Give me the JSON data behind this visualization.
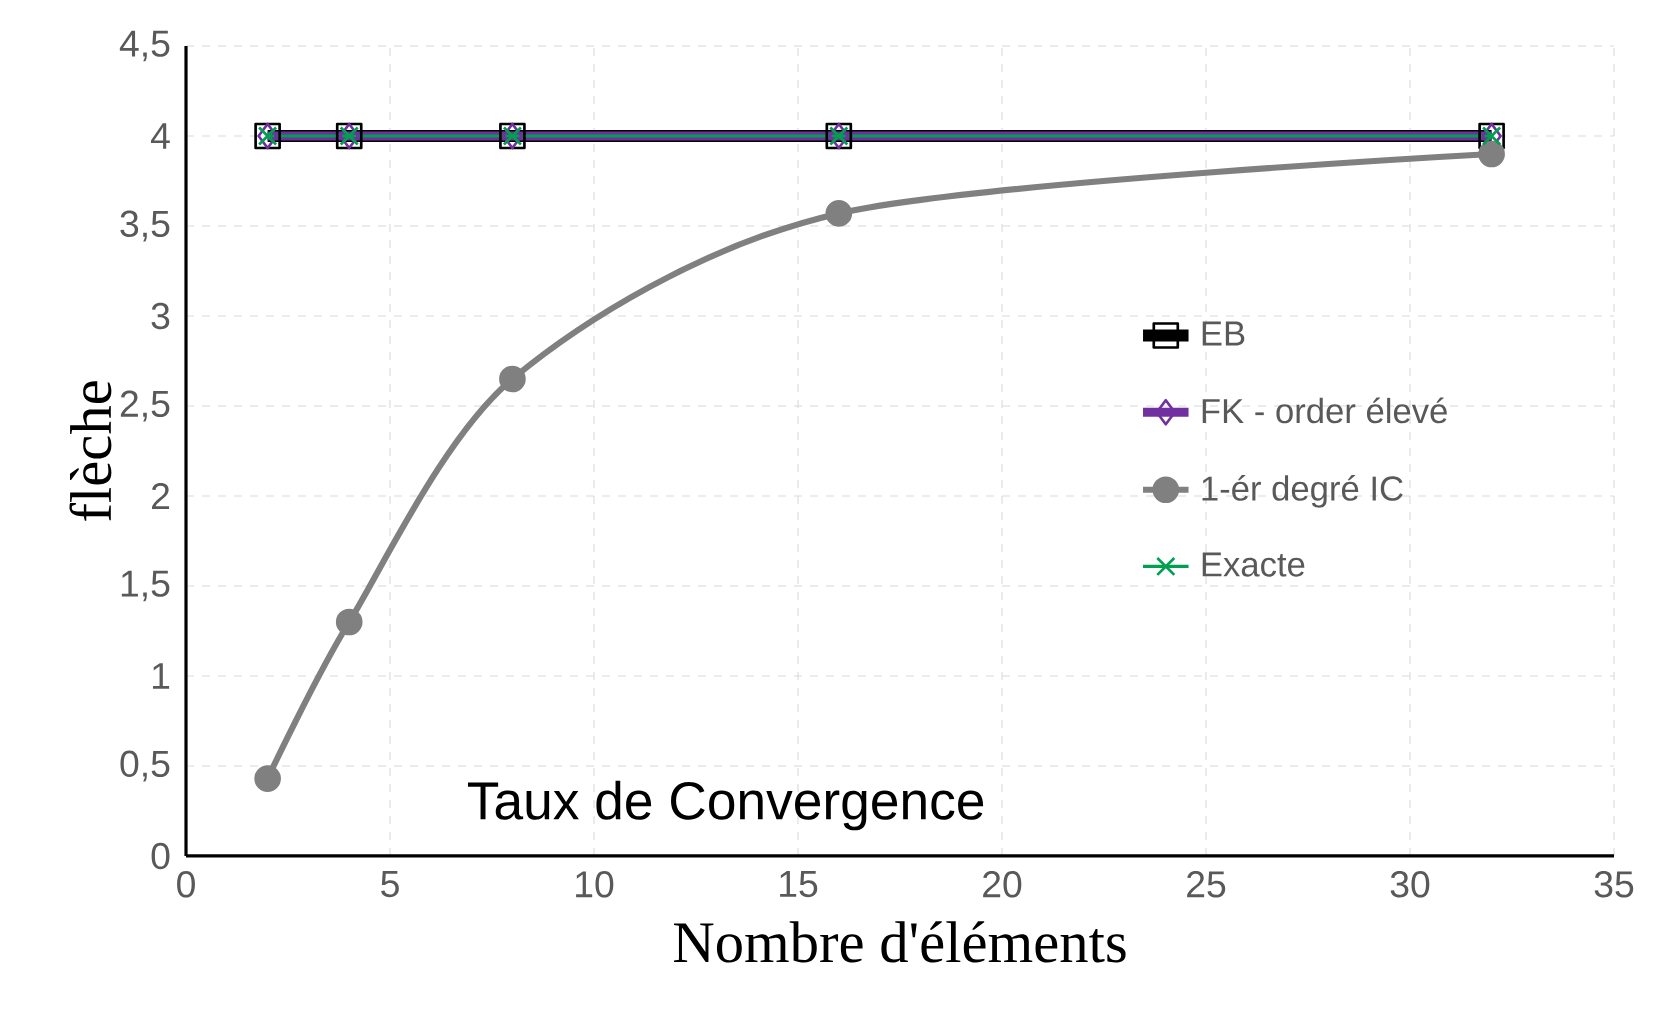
{
  "chart_data": {
    "type": "line",
    "xlabel": "Nombre d'éléments",
    "ylabel": "flèche",
    "annotations": [
      "Taux de Convergence"
    ],
    "x": [
      2,
      4,
      8,
      16,
      32
    ],
    "series": [
      {
        "name": "EB",
        "color": "#000000",
        "marker": "square",
        "values": [
          4,
          4,
          4,
          4,
          4
        ]
      },
      {
        "name": "FK - order élevé",
        "color": "#7030a0",
        "marker": "diamond",
        "values": [
          4,
          4,
          4,
          4,
          4
        ]
      },
      {
        "name": "1-ér degré IC",
        "color": "#808080",
        "marker": "circle",
        "values": [
          0.43,
          1.3,
          2.65,
          3.57,
          3.9
        ]
      },
      {
        "name": "Exacte",
        "color": "#00a050",
        "marker": "cross",
        "values": [
          4,
          4,
          4,
          4,
          4
        ]
      }
    ],
    "xlim": [
      0,
      35
    ],
    "xticks": [
      0,
      5,
      10,
      15,
      20,
      25,
      30,
      35
    ],
    "ylim": [
      0,
      4.5
    ],
    "yticks": [
      0,
      {
        "value": 0.5,
        "label": "0,5"
      },
      1,
      {
        "value": 1.5,
        "label": "1,5"
      },
      2,
      {
        "value": 2.5,
        "label": "2,5"
      },
      3,
      {
        "value": 3.5,
        "label": "3,5"
      },
      4,
      {
        "value": 4.5,
        "label": "4,5"
      }
    ],
    "grid": true,
    "legend": "right",
    "line_style": "solid"
  }
}
